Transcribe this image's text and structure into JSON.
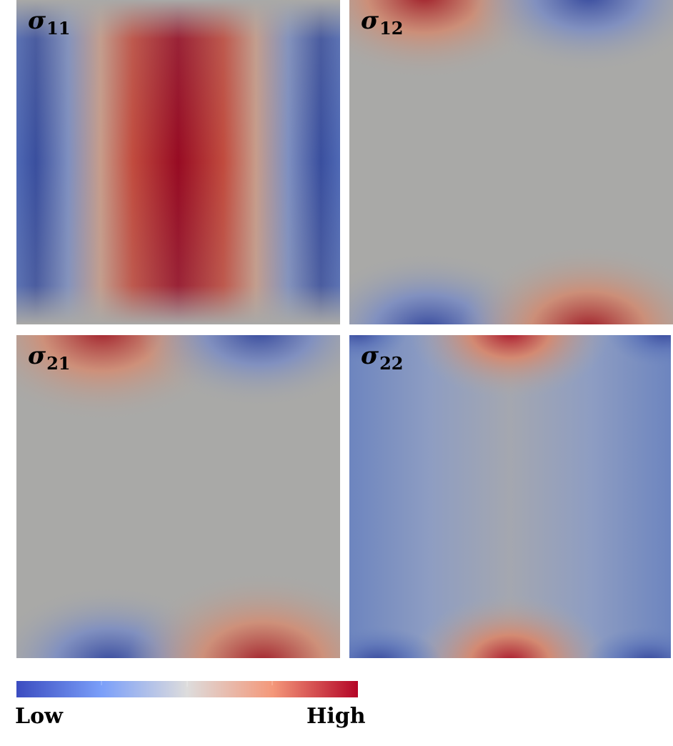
{
  "panels": [
    {
      "id": "p11",
      "symbol": "σ",
      "subscript": "11"
    },
    {
      "id": "p12",
      "symbol": "σ",
      "subscript": "12"
    },
    {
      "id": "p21",
      "symbol": "σ",
      "subscript": "21"
    },
    {
      "id": "p22",
      "symbol": "σ",
      "subscript": "22"
    }
  ],
  "colorbar": {
    "low_label": "Low",
    "high_label": "High",
    "colors": [
      "#3b4cc0",
      "#7b9ff9",
      "#dddcdc",
      "#f4987a",
      "#b40426"
    ]
  }
}
